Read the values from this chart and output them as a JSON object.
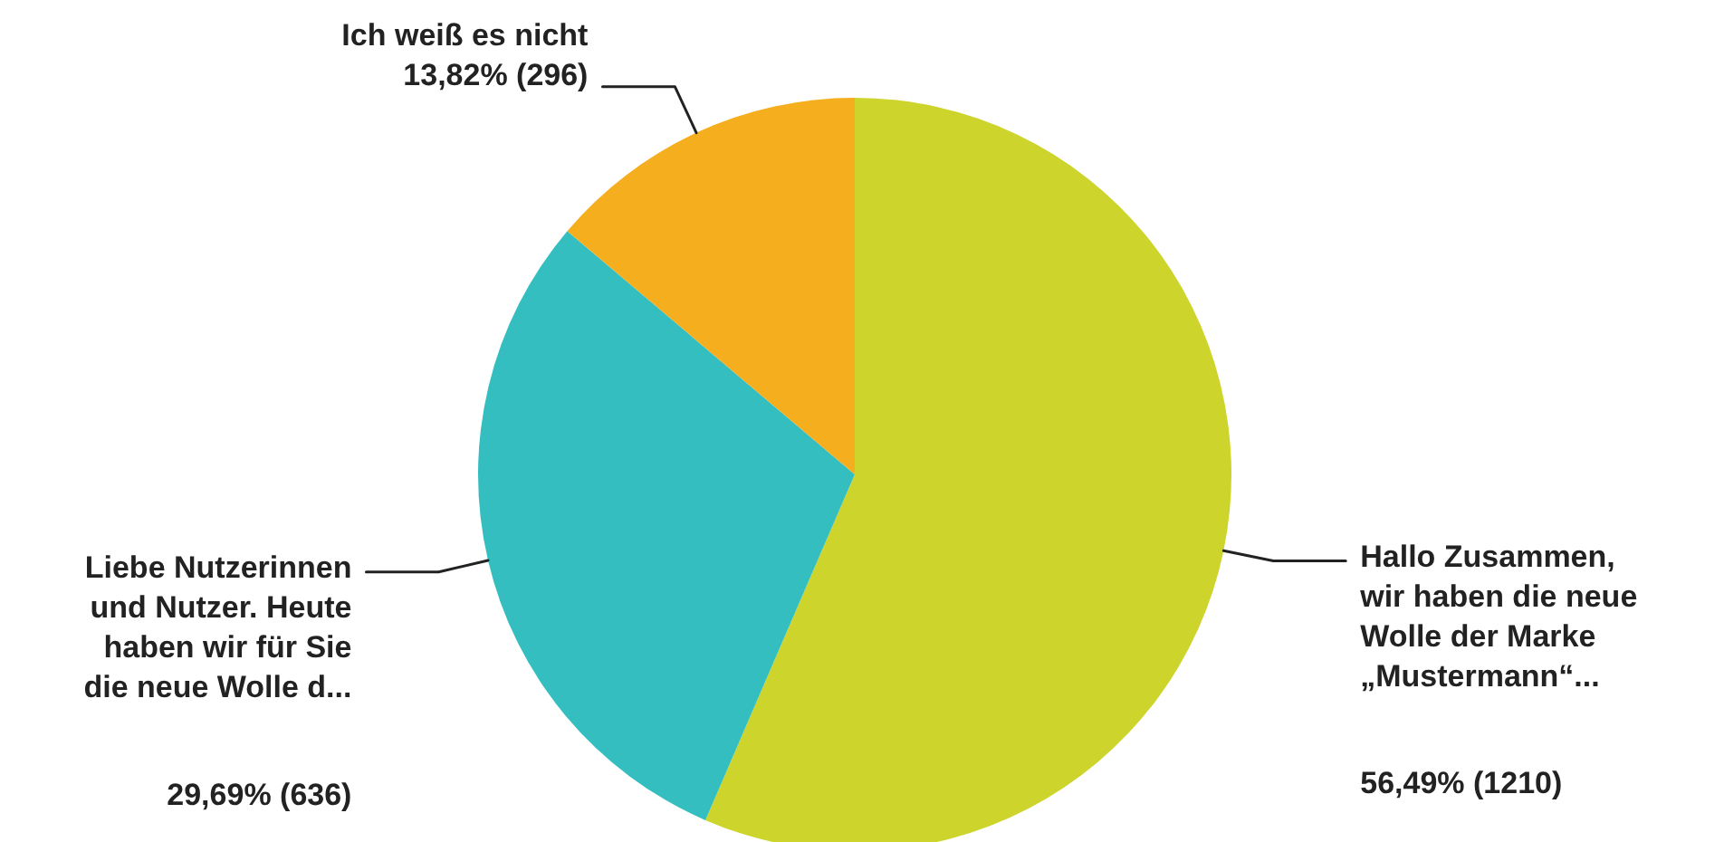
{
  "chart_data": {
    "type": "pie",
    "categories": [
      "Hallo Zusammen,\nwir haben die neue\nWolle der Marke\n„Mustermann“...",
      "Liebe Nutzerinnen\nund Nutzer. Heute\nhaben wir für Sie\ndie neue Wolle d...",
      "Ich weiß es nicht"
    ],
    "values": [
      1210,
      636,
      296
    ],
    "value_labels": [
      "56,49% (1210)",
      "29,69% (636)",
      "13,82% (296)"
    ],
    "colors": [
      "#cdd42b",
      "#35bec0",
      "#f5ae1e"
    ]
  }
}
